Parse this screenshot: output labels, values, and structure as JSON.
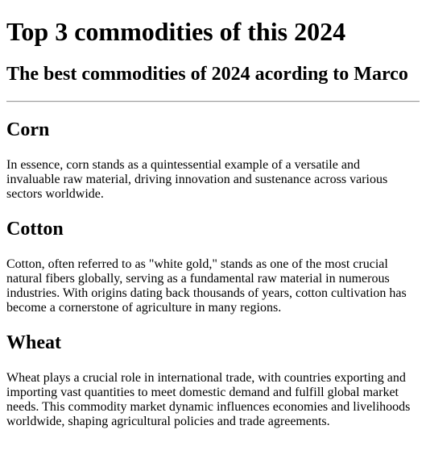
{
  "page": {
    "title": "Top 3 commodities of this 2024",
    "subtitle": "The best commodities of 2024 acording to Marco"
  },
  "sections": [
    {
      "heading": "Corn",
      "body": "In essence, corn stands as a quintessential example of a versatile and invaluable raw material, driving innovation and sustenance across various sectors worldwide."
    },
    {
      "heading": "Cotton",
      "body": "Cotton, often referred to as \"white gold,\" stands as one of the most crucial natural fibers globally, serving as a fundamental raw material in numerous industries. With origins dating back thousands of years, cotton cultivation has become a cornerstone of agriculture in many regions."
    },
    {
      "heading": "Wheat",
      "body": "Wheat plays a crucial role in international trade, with countries exporting and importing vast quantities to meet domestic demand and fulfill global market needs. This commodity market dynamic influences economies and livelihoods worldwide, shaping agricultural policies and trade agreements."
    }
  ]
}
